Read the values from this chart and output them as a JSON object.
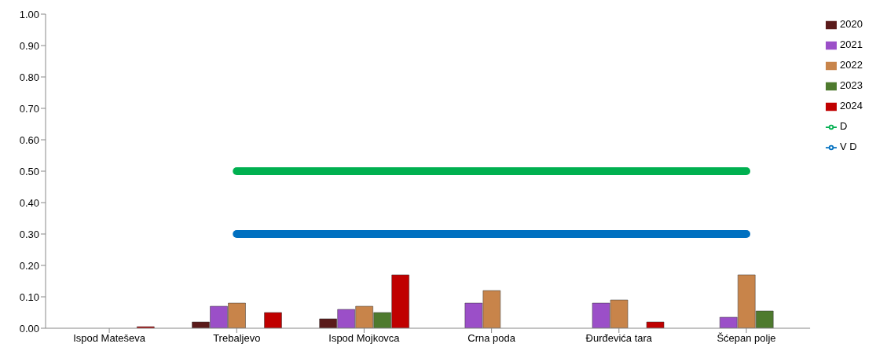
{
  "chart_data": {
    "type": "bar",
    "categories": [
      "Ispod Mateševa",
      "Trebaljevo",
      "Ispod Mojkovca",
      "Crna poda",
      "Đurđevića tara",
      "Šćepan polje"
    ],
    "series": [
      {
        "name": "2020",
        "color": "#5a1a1a",
        "values": [
          null,
          0.02,
          0.03,
          null,
          null,
          null
        ]
      },
      {
        "name": "2021",
        "color": "#9b4fc8",
        "values": [
          null,
          0.07,
          0.06,
          0.08,
          0.08,
          0.035
        ]
      },
      {
        "name": "2022",
        "color": "#c8844a",
        "values": [
          null,
          0.08,
          0.07,
          0.12,
          0.09,
          0.17
        ]
      },
      {
        "name": "2023",
        "color": "#4e7a2e",
        "values": [
          null,
          null,
          0.05,
          null,
          null,
          0.055
        ]
      },
      {
        "name": "2024",
        "color": "#c00000",
        "values": [
          0.005,
          0.05,
          0.17,
          null,
          0.02,
          null
        ]
      },
      {
        "name": "V D",
        "type": "line",
        "color": "#0070c0",
        "values": [
          null,
          0.3,
          0.3,
          0.3,
          0.3,
          0.3
        ]
      },
      {
        "name": "D",
        "type": "line",
        "color": "#00b050",
        "values": [
          null,
          0.5,
          0.5,
          0.5,
          0.5,
          0.5
        ]
      }
    ],
    "ylim": [
      0,
      1
    ],
    "yticks": [
      {
        "value": 0,
        "label": "0.00"
      },
      {
        "value": 0.1,
        "label": "0.10"
      },
      {
        "value": 0.2,
        "label": "0.20"
      },
      {
        "value": 0.3,
        "label": "0.30"
      },
      {
        "value": 0.4,
        "label": "0.40"
      },
      {
        "value": 0.5,
        "label": "0.50"
      },
      {
        "value": 0.6,
        "label": "0.60"
      },
      {
        "value": 0.7,
        "label": "0.70"
      },
      {
        "value": 0.8,
        "label": "0.80"
      },
      {
        "value": 0.9,
        "label": "0.90"
      },
      {
        "value": 1,
        "label": "1.00"
      }
    ],
    "grid": false,
    "legend": "right",
    "marker": "none"
  }
}
